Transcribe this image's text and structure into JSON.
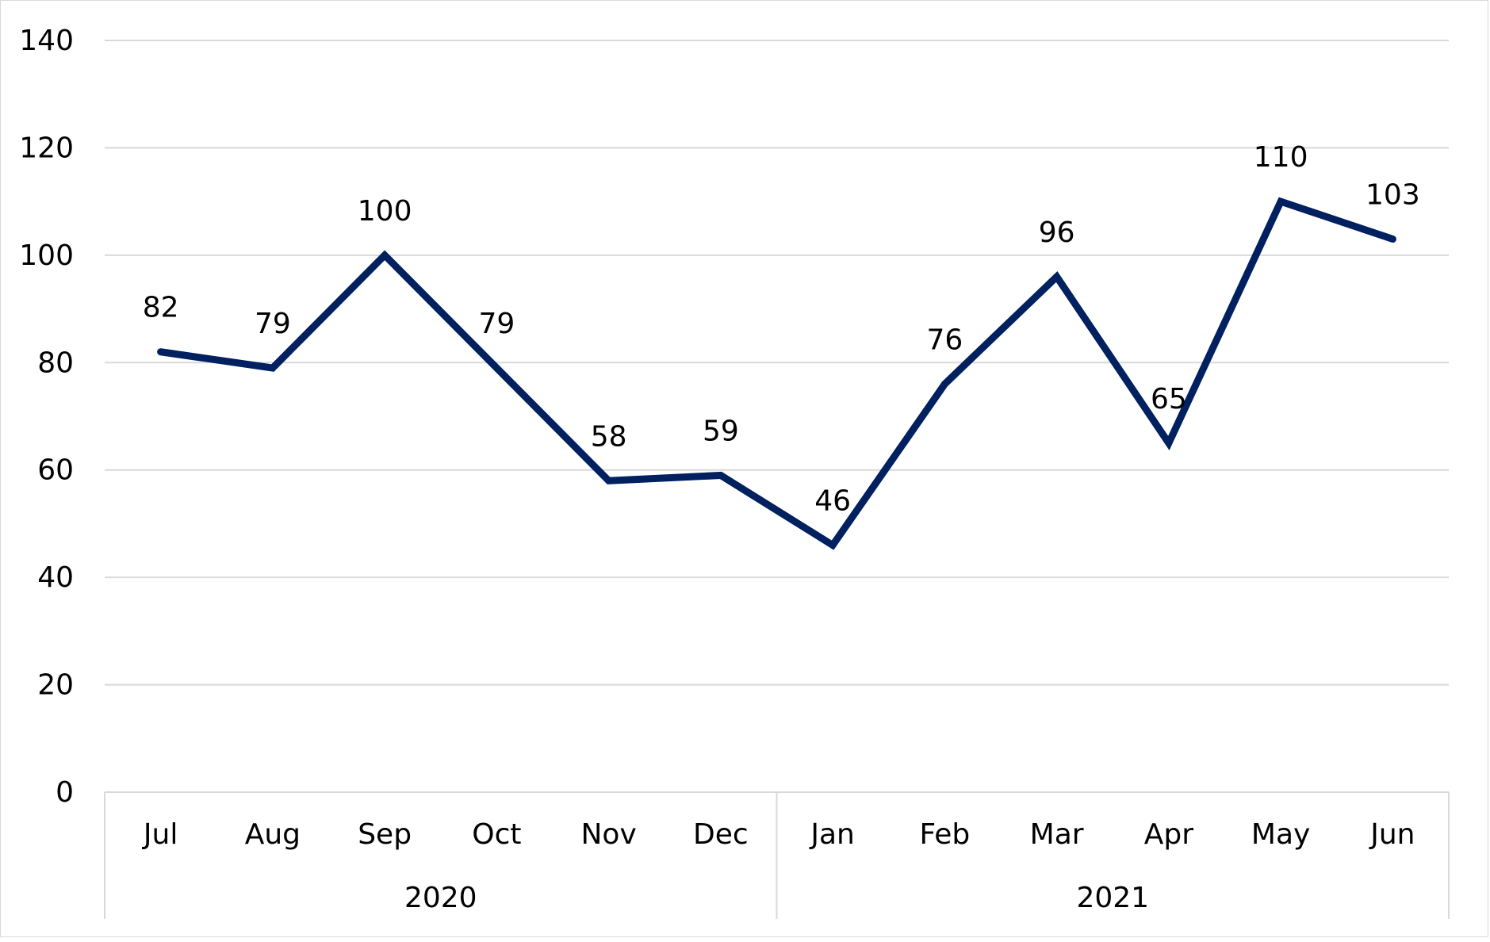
{
  "colors": {
    "line": "#002060",
    "grid": "#d9d9d9",
    "axis": "#d9d9d9",
    "text": "#000000"
  },
  "chart_data": {
    "type": "line",
    "title": "",
    "xlabel": "",
    "ylabel": "",
    "ylim": [
      0,
      140
    ],
    "yticks": [
      "0",
      "20",
      "40",
      "60",
      "80",
      "100",
      "120",
      "140"
    ],
    "grid": true,
    "legend": "none",
    "categories": [
      "Jul",
      "Aug",
      "Sep",
      "Oct",
      "Nov",
      "Dec",
      "Jan",
      "Feb",
      "Mar",
      "Apr",
      "May",
      "Jun"
    ],
    "groups": [
      {
        "label": "2020",
        "count": 6
      },
      {
        "label": "2021",
        "count": 6
      }
    ],
    "series": [
      {
        "values": [
          82,
          79,
          100,
          79,
          58,
          59,
          46,
          76,
          96,
          65,
          110,
          103
        ],
        "data_labels": [
          "82",
          "79",
          "100",
          "79",
          "58",
          "59",
          "46",
          "76",
          "96",
          "65",
          "110",
          "103"
        ]
      }
    ]
  }
}
